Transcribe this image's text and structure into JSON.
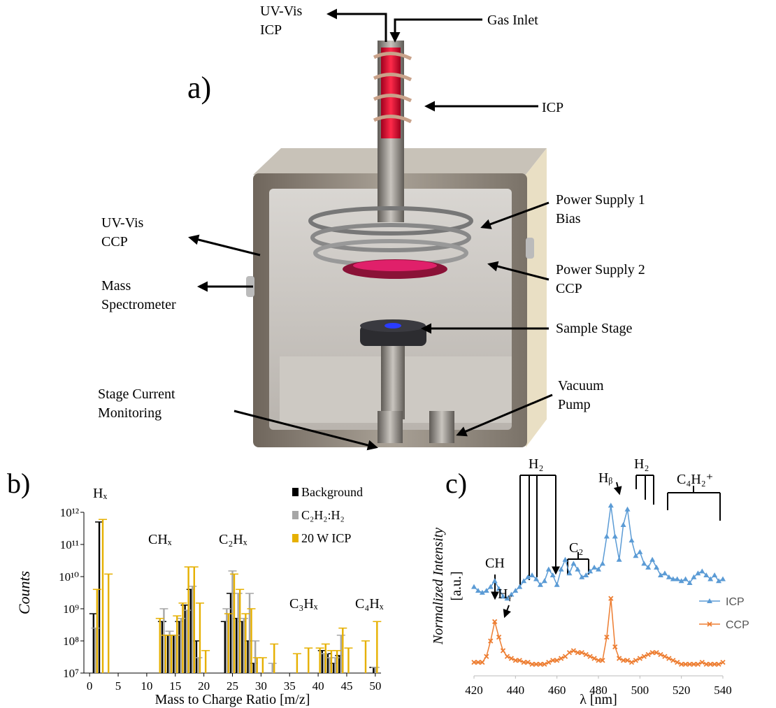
{
  "diagram": {
    "panel_label": "a)",
    "labels": [
      {
        "lines": [
          "UV-Vis",
          "ICP"
        ]
      },
      {
        "lines": [
          "Gas Inlet"
        ]
      },
      {
        "lines": [
          "ICP"
        ]
      },
      {
        "lines": [
          "Power Supply 1",
          "Bias"
        ]
      },
      {
        "lines": [
          "UV-Vis",
          "CCP"
        ]
      },
      {
        "lines": [
          "Mass",
          "Spectrometer"
        ]
      },
      {
        "lines": [
          "Power Supply 2",
          "CCP"
        ]
      },
      {
        "lines": [
          "Sample Stage"
        ]
      },
      {
        "lines": [
          "Stage Current",
          "Monitoring"
        ]
      },
      {
        "lines": [
          "Vacuum",
          "Pump"
        ]
      }
    ]
  },
  "chart_data": [
    {
      "type": "bar",
      "panel_label": "b)",
      "x_label": "Mass to Charge Ratio [m/z]",
      "y_label": "Counts",
      "log_y": true,
      "xlim": [
        -1,
        51
      ],
      "xticks": [
        0,
        5,
        10,
        15,
        20,
        25,
        30,
        35,
        40,
        45,
        50
      ],
      "ylim": [
        10000000,
        1000000000000
      ],
      "yticks": [
        {
          "value": 10000000,
          "label": "10⁷"
        },
        {
          "value": 100000000,
          "label": "10⁸"
        },
        {
          "value": 1000000000,
          "label": "10⁹"
        },
        {
          "value": 10000000000,
          "label": "10¹⁰"
        },
        {
          "value": 100000000000,
          "label": "10¹¹"
        },
        {
          "value": 1000000000000,
          "label": "10¹²"
        }
      ],
      "x": [
        1,
        2,
        3,
        12,
        13,
        14,
        15,
        16,
        17,
        18,
        19,
        20,
        24,
        25,
        26,
        27,
        28,
        29,
        30,
        32,
        36,
        38,
        40,
        41,
        42,
        43,
        44,
        45,
        48,
        50
      ],
      "series": [
        {
          "name": "Background",
          "color": "#000000",
          "values": [
            700000000,
            500000000000,
            null,
            null,
            400000000,
            150000000,
            150000000,
            400000000,
            1300000000,
            4000000000,
            100000000,
            null,
            400000000,
            3000000000,
            500000000,
            400000000,
            100000000,
            20000000,
            null,
            null,
            null,
            null,
            null,
            50000000,
            40000000,
            20000000,
            35000000,
            null,
            null,
            15000000
          ]
        },
        {
          "name": "C₂H₂:H₂",
          "color": "#a6a6a6",
          "values": [
            250000000,
            null,
            null,
            null,
            1000000000,
            200000000,
            150000000,
            500000000,
            900000000,
            5000000000,
            30000000,
            null,
            1000000000,
            15000000000,
            3000000000,
            500000000,
            3000000000,
            100000000,
            null,
            20000000,
            null,
            null,
            null,
            40000000,
            30000000,
            30000000,
            150000000,
            null,
            null,
            15000000
          ]
        },
        {
          "name": "20 W ICP",
          "color": "#e6b000",
          "values": [
            4000000000,
            600000000000,
            12000000000,
            500000000,
            150000000,
            150000000,
            600000000,
            1500000000,
            20000000000,
            20000000000,
            1500000000,
            50000000,
            700000000,
            12000000000,
            4000000000,
            700000000,
            1000000000,
            30000000,
            30000000,
            80000000,
            40000000,
            60000000,
            60000000,
            80000000,
            50000000,
            50000000,
            250000000,
            60000000,
            100000000,
            400000000
          ]
        }
      ],
      "annotations": [
        "Hₓ",
        "CHₓ",
        "C₂Hₓ",
        "C₃Hₓ",
        "C₄Hₓ"
      ]
    },
    {
      "type": "line",
      "panel_label": "c)",
      "x_label": "λ [nm]",
      "y_label": [
        "Normalized Intensity",
        "[a.u.]"
      ],
      "xlim": [
        420,
        540
      ],
      "xticks": [
        420,
        440,
        460,
        480,
        500,
        520,
        540
      ],
      "ylim": [
        0,
        1
      ],
      "x": [
        420,
        422,
        424,
        426,
        428,
        430,
        432,
        434,
        436,
        438,
        440,
        442,
        444,
        446,
        448,
        450,
        452,
        454,
        456,
        458,
        460,
        462,
        464,
        466,
        468,
        470,
        472,
        474,
        476,
        478,
        480,
        482,
        484,
        486,
        488,
        490,
        492,
        494,
        496,
        498,
        500,
        502,
        504,
        506,
        508,
        510,
        512,
        514,
        516,
        518,
        520,
        522,
        524,
        526,
        528,
        530,
        532,
        534,
        536,
        538,
        540
      ],
      "series": [
        {
          "name": "ICP",
          "color": "#5b9bd5",
          "marker": "triangle",
          "values": [
            0.46,
            0.44,
            0.43,
            0.44,
            0.46,
            0.49,
            0.45,
            0.41,
            0.4,
            0.42,
            0.44,
            0.46,
            0.49,
            0.51,
            0.52,
            0.5,
            0.47,
            0.49,
            0.55,
            0.52,
            0.47,
            0.55,
            0.6,
            0.53,
            0.58,
            0.55,
            0.51,
            0.52,
            0.54,
            0.56,
            0.55,
            0.58,
            0.72,
            0.88,
            0.72,
            0.6,
            0.78,
            0.86,
            0.7,
            0.62,
            0.64,
            0.58,
            0.56,
            0.6,
            0.56,
            0.52,
            0.53,
            0.51,
            0.5,
            0.5,
            0.49,
            0.5,
            0.48,
            0.51,
            0.53,
            0.54,
            0.52,
            0.5,
            0.52,
            0.49,
            0.5
          ]
        },
        {
          "name": "CCP",
          "color": "#ed7d31",
          "marker": "x",
          "values": [
            0.07,
            0.07,
            0.07,
            0.1,
            0.18,
            0.28,
            0.2,
            0.13,
            0.1,
            0.09,
            0.08,
            0.08,
            0.07,
            0.07,
            0.06,
            0.06,
            0.06,
            0.06,
            0.07,
            0.08,
            0.08,
            0.09,
            0.1,
            0.12,
            0.13,
            0.12,
            0.12,
            0.11,
            0.1,
            0.09,
            0.08,
            0.08,
            0.2,
            0.4,
            0.15,
            0.09,
            0.08,
            0.08,
            0.07,
            0.08,
            0.09,
            0.1,
            0.11,
            0.12,
            0.12,
            0.11,
            0.1,
            0.09,
            0.08,
            0.07,
            0.06,
            0.06,
            0.06,
            0.06,
            0.06,
            0.07,
            0.06,
            0.06,
            0.06,
            0.06,
            0.07
          ]
        }
      ],
      "annotations": [
        "CH",
        "Hᵧ",
        "H₂",
        "C₂",
        "Hᵦ",
        "H₂",
        "C₄H₂⁺"
      ]
    }
  ]
}
